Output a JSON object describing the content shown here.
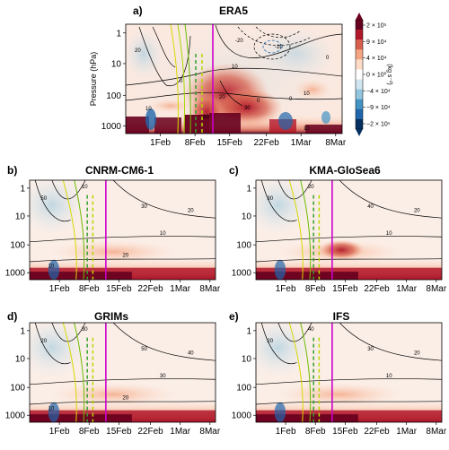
{
  "chart_data": {
    "type": "heatmap",
    "colorbar": {
      "unit": "(kg s⁻²)",
      "ticks": [
        "2 × 10⁵",
        "9 × 10⁴",
        "4 × 10⁴",
        "0 × 10⁰",
        "−4 × 10⁴",
        "−9 × 10⁴",
        "−2 × 10⁵"
      ],
      "colors": [
        "#67001f",
        "#b2182b",
        "#d6604d",
        "#f4a582",
        "#fddbc7",
        "#ffffff",
        "#d1e5f0",
        "#92c5de",
        "#4393c3",
        "#2166ac",
        "#053061"
      ]
    },
    "ylabel": "Pressure (hPa)",
    "yticks": [
      "1",
      "10",
      "100",
      "1000"
    ],
    "xticks": [
      "1Feb",
      "8Feb",
      "15Feb",
      "22Feb",
      "1Mar",
      "8Mar"
    ],
    "panels": [
      {
        "label": "a)",
        "title": "ERA5",
        "contour_labels": [
          "20",
          "-20",
          "-10",
          "0",
          "10",
          "20",
          "30",
          "10",
          "10",
          "0",
          "-0",
          "0",
          "20",
          "10"
        ]
      },
      {
        "label": "b)",
        "title": "CNRM-CM6-1",
        "contour_labels": [
          "50",
          "10",
          "30",
          "20",
          "10",
          "20",
          "10"
        ]
      },
      {
        "label": "c)",
        "title": "KMA-GloSea6",
        "contour_labels": [
          "30",
          "20",
          "40",
          "20",
          "10"
        ]
      },
      {
        "label": "d)",
        "title": "GRIMs",
        "contour_labels": [
          "20",
          "30",
          "50",
          "40",
          "30",
          "20",
          "10"
        ]
      },
      {
        "label": "e)",
        "title": "IFS",
        "contour_labels": [
          "20",
          "40",
          "30",
          "20",
          "10"
        ]
      }
    ]
  }
}
